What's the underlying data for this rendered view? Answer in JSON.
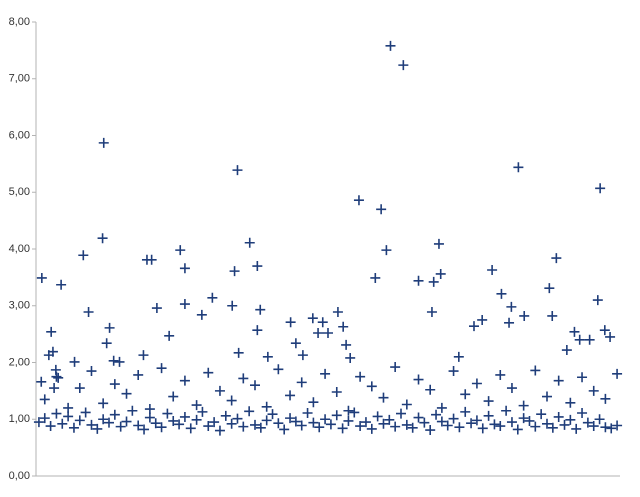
{
  "chart_data": {
    "type": "scatter",
    "color": "#1f3d7a",
    "marker": "+",
    "xlim": [
      0,
      100
    ],
    "ylim": [
      0,
      8
    ],
    "yticks": [
      {
        "value": 0,
        "label": "0,00"
      },
      {
        "value": 1,
        "label": "1,00"
      },
      {
        "value": 2,
        "label": "2,00"
      },
      {
        "value": 3,
        "label": "3,00"
      },
      {
        "value": 4,
        "label": "4,00"
      },
      {
        "value": 5,
        "label": "5,00"
      },
      {
        "value": 6,
        "label": "6,00"
      },
      {
        "value": 7,
        "label": "7,00"
      },
      {
        "value": 8,
        "label": "8,00"
      }
    ],
    "grid": false,
    "x": [
      0.9,
      1.0,
      2.2,
      2.6,
      2.9,
      4.3,
      3.1,
      3.4,
      3.8,
      6.6,
      8.1,
      9.0,
      11.6,
      11.4,
      12.1,
      12.6,
      13.3,
      14.3,
      19.0,
      19.8,
      18.4,
      20.7,
      22.8,
      24.7,
      25.5,
      25.5,
      28.4,
      30.2,
      33.6,
      34.0,
      34.5,
      34.7,
      36.6,
      37.9,
      37.9,
      38.4,
      39.7,
      43.6,
      44.5,
      45.7,
      47.4,
      48.3,
      49.1,
      50.0,
      51.7,
      52.6,
      53.1,
      53.8,
      55.3,
      58.1,
      59.1,
      60.0,
      60.7,
      62.9,
      65.5,
      67.8,
      68.1,
      69.0,
      69.3,
      72.4,
      75.0,
      76.4,
      78.1,
      79.7,
      81.0,
      81.4,
      82.6,
      83.6,
      87.9,
      88.4,
      89.1,
      90.9,
      92.2,
      93.1,
      94.8,
      96.2,
      96.6,
      97.4,
      98.3,
      0.5,
      1.5,
      2.5,
      3.5,
      4.5,
      5.5,
      6.5,
      7.5,
      8.5,
      9.5,
      10.5,
      11.5,
      12.5,
      13.5,
      14.5,
      15.5,
      16.5,
      17.5,
      18.5,
      19.5,
      20.5,
      21.5,
      22.5,
      23.5,
      24.5,
      25.5,
      26.5,
      27.5,
      28.5,
      29.5,
      30.5,
      31.5,
      32.5,
      33.5,
      34.5,
      35.5,
      36.5,
      37.5,
      38.5,
      39.5,
      40.5,
      41.5,
      42.5,
      43.5,
      44.5,
      45.5,
      46.5,
      47.5,
      48.5,
      49.5,
      50.5,
      51.5,
      52.5,
      53.5,
      54.5,
      55.5,
      56.5,
      57.5,
      58.5,
      59.5,
      60.5,
      61.5,
      62.5,
      63.5,
      64.5,
      65.5,
      66.5,
      67.5,
      68.5,
      69.5,
      70.5,
      71.5,
      72.5,
      73.5,
      74.5,
      75.5,
      76.5,
      77.5,
      78.5,
      79.5,
      80.5,
      81.5,
      82.5,
      83.5,
      84.5,
      85.5,
      86.5,
      87.5,
      88.5,
      89.5,
      90.5,
      91.5,
      92.5,
      93.5,
      94.5,
      95.5,
      96.5,
      97.5,
      98.5,
      99.5,
      1.5,
      3.5,
      5.5,
      7.5,
      9.5,
      11.5,
      13.5,
      15.5,
      17.5,
      19.5,
      21.5,
      23.5,
      25.5,
      27.5,
      29.5,
      31.5,
      33.5,
      35.5,
      37.5,
      39.5,
      41.5,
      43.5,
      45.5,
      47.5,
      49.5,
      51.5,
      53.5,
      55.5,
      57.5,
      59.5,
      61.5,
      63.5,
      65.5,
      67.5,
      69.5,
      71.5,
      73.5,
      75.5,
      77.5,
      79.5,
      81.5,
      83.5,
      85.5,
      87.5,
      89.5,
      91.5,
      93.5,
      95.5,
      97.5,
      99.5
    ],
    "values": [
      1.66,
      3.49,
      2.13,
      2.54,
      2.19,
      3.37,
      1.55,
      1.87,
      1.73,
      2.01,
      3.89,
      2.89,
      5.87,
      4.19,
      2.34,
      2.61,
      2.03,
      2.01,
      3.81,
      3.81,
      2.13,
      2.96,
      2.47,
      3.98,
      3.66,
      3.03,
      2.84,
      3.14,
      3.0,
      3.61,
      5.39,
      2.17,
      4.11,
      3.7,
      2.57,
      2.93,
      2.1,
      2.71,
      2.34,
      2.13,
      2.78,
      2.52,
      2.71,
      2.52,
      2.89,
      2.63,
      2.31,
      2.08,
      4.86,
      3.49,
      4.7,
      3.98,
      7.58,
      7.24,
      3.44,
      2.89,
      3.42,
      4.09,
      3.56,
      2.1,
      2.64,
      2.75,
      3.63,
      3.21,
      2.7,
      2.98,
      5.44,
      2.82,
      3.31,
      2.82,
      3.84,
      2.22,
      2.54,
      2.4,
      2.4,
      3.1,
      5.07,
      2.57,
      2.45,
      0.95,
      1.02,
      0.88,
      1.1,
      0.92,
      1.05,
      0.85,
      0.98,
      1.12,
      0.9,
      0.83,
      1.0,
      0.94,
      1.08,
      0.87,
      0.96,
      1.15,
      0.89,
      0.82,
      1.03,
      0.93,
      0.86,
      1.1,
      0.97,
      0.91,
      1.04,
      0.84,
      0.99,
      1.13,
      0.88,
      0.95,
      0.8,
      1.06,
      0.92,
      1.01,
      0.87,
      1.14,
      0.9,
      0.85,
      0.98,
      1.09,
      0.93,
      0.82,
      1.02,
      0.96,
      0.89,
      1.11,
      0.94,
      0.86,
      1.0,
      0.91,
      1.07,
      0.84,
      0.97,
      1.12,
      0.88,
      0.95,
      0.83,
      1.05,
      0.92,
      0.99,
      0.87,
      1.1,
      0.9,
      0.85,
      1.03,
      0.94,
      0.81,
      1.08,
      0.96,
      0.89,
      1.01,
      0.86,
      1.13,
      0.93,
      0.98,
      0.84,
      1.06,
      0.91,
      0.88,
      1.15,
      0.95,
      0.82,
      1.02,
      0.97,
      0.87,
      1.09,
      0.92,
      0.85,
      1.04,
      0.9,
      0.99,
      0.83,
      1.11,
      0.94,
      0.88,
      1.0,
      0.86,
      0.84,
      0.89,
      1.35,
      1.75,
      1.2,
      1.55,
      1.85,
      1.28,
      1.62,
      1.45,
      1.78,
      1.18,
      1.9,
      1.4,
      1.68,
      1.25,
      1.82,
      1.5,
      1.33,
      1.72,
      1.6,
      1.22,
      1.88,
      1.42,
      1.65,
      1.3,
      1.8,
      1.48,
      1.15,
      1.75,
      1.58,
      1.38,
      1.92,
      1.26,
      1.7,
      1.52,
      1.2,
      1.85,
      1.44,
      1.63,
      1.32,
      1.78,
      1.55,
      1.24,
      1.86,
      1.4,
      1.68,
      1.29,
      1.74,
      1.5,
      1.36,
      1.8
    ]
  }
}
